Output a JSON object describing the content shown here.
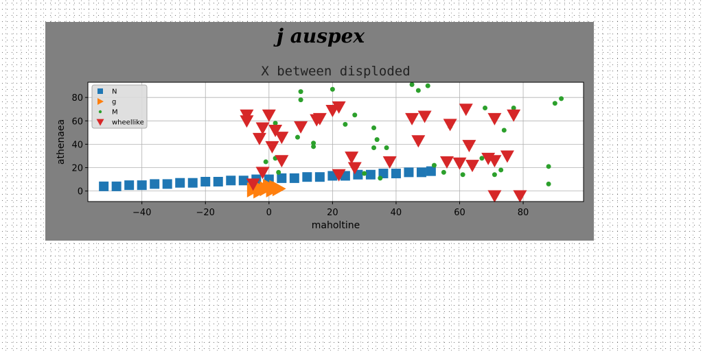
{
  "chart_data": {
    "type": "scatter",
    "suptitle": "j auspex",
    "title": "X between disploded",
    "xlabel": "maholtine",
    "ylabel": "athenaea",
    "xlim": [
      -57,
      99
    ],
    "ylim": [
      -9,
      93
    ],
    "xticks": [
      -40,
      -20,
      0,
      20,
      40,
      60,
      80
    ],
    "yticks": [
      0,
      20,
      40,
      60,
      80
    ],
    "grid": true,
    "legend_position": "top-left",
    "series": [
      {
        "name": "N",
        "marker": "square",
        "color": "#1f77b4",
        "points": [
          [
            -52,
            4
          ],
          [
            -48,
            4
          ],
          [
            -44,
            5
          ],
          [
            -40,
            5
          ],
          [
            -36,
            6
          ],
          [
            -32,
            6
          ],
          [
            -28,
            7
          ],
          [
            -24,
            7
          ],
          [
            -20,
            8
          ],
          [
            -16,
            8
          ],
          [
            -12,
            9
          ],
          [
            -8,
            9
          ],
          [
            -4,
            10
          ],
          [
            0,
            10
          ],
          [
            4,
            11
          ],
          [
            8,
            11
          ],
          [
            12,
            12
          ],
          [
            16,
            12
          ],
          [
            20,
            13
          ],
          [
            24,
            13
          ],
          [
            28,
            14
          ],
          [
            32,
            14
          ],
          [
            36,
            15
          ],
          [
            40,
            15
          ],
          [
            44,
            16
          ],
          [
            48,
            16
          ],
          [
            51,
            17
          ]
        ]
      },
      {
        "name": "g",
        "marker": "triangle-right",
        "color": "#ff7f0e",
        "points": [
          [
            -5,
            1
          ],
          [
            -3,
            0
          ],
          [
            -1,
            2
          ],
          [
            1,
            1
          ],
          [
            3,
            2
          ],
          [
            -4,
            4
          ],
          [
            0,
            4
          ],
          [
            2,
            3
          ]
        ]
      },
      {
        "name": "M",
        "marker": "circle",
        "color": "#2ca02c",
        "points": [
          [
            10,
            85
          ],
          [
            10,
            78
          ],
          [
            20,
            87
          ],
          [
            45,
            91
          ],
          [
            47,
            86
          ],
          [
            50,
            90
          ],
          [
            68,
            71
          ],
          [
            77,
            71
          ],
          [
            90,
            75
          ],
          [
            92,
            79
          ],
          [
            2,
            58
          ],
          [
            14,
            41
          ],
          [
            14,
            38
          ],
          [
            27,
            65
          ],
          [
            33,
            54
          ],
          [
            34,
            44
          ],
          [
            37,
            37
          ],
          [
            33,
            37
          ],
          [
            24,
            57
          ],
          [
            9,
            46
          ],
          [
            57,
            55
          ],
          [
            61,
            14
          ],
          [
            67,
            28
          ],
          [
            71,
            14
          ],
          [
            73,
            18
          ],
          [
            74,
            52
          ],
          [
            88,
            21
          ],
          [
            88,
            6
          ],
          [
            3,
            16
          ],
          [
            30,
            15
          ],
          [
            35,
            11
          ],
          [
            52,
            22
          ],
          [
            55,
            16
          ],
          [
            2,
            28
          ],
          [
            -1,
            25
          ]
        ]
      },
      {
        "name": "wheellike",
        "marker": "triangle-down",
        "color": "#d62728",
        "points": [
          [
            -7,
            65
          ],
          [
            -7,
            60
          ],
          [
            0,
            65
          ],
          [
            -2,
            54
          ],
          [
            -3,
            45
          ],
          [
            2,
            52
          ],
          [
            4,
            46
          ],
          [
            1,
            38
          ],
          [
            4,
            26
          ],
          [
            -2,
            16
          ],
          [
            -5,
            6
          ],
          [
            10,
            55
          ],
          [
            15,
            61
          ],
          [
            16,
            62
          ],
          [
            20,
            69
          ],
          [
            22,
            72
          ],
          [
            26,
            29
          ],
          [
            27,
            20
          ],
          [
            22,
            14
          ],
          [
            38,
            25
          ],
          [
            45,
            62
          ],
          [
            47,
            43
          ],
          [
            49,
            64
          ],
          [
            57,
            57
          ],
          [
            56,
            25
          ],
          [
            60,
            24
          ],
          [
            62,
            70
          ],
          [
            63,
            39
          ],
          [
            64,
            22
          ],
          [
            69,
            28
          ],
          [
            71,
            26
          ],
          [
            71,
            62
          ],
          [
            75,
            30
          ],
          [
            77,
            65
          ],
          [
            71,
            -4
          ],
          [
            79,
            -4
          ]
        ]
      }
    ]
  }
}
